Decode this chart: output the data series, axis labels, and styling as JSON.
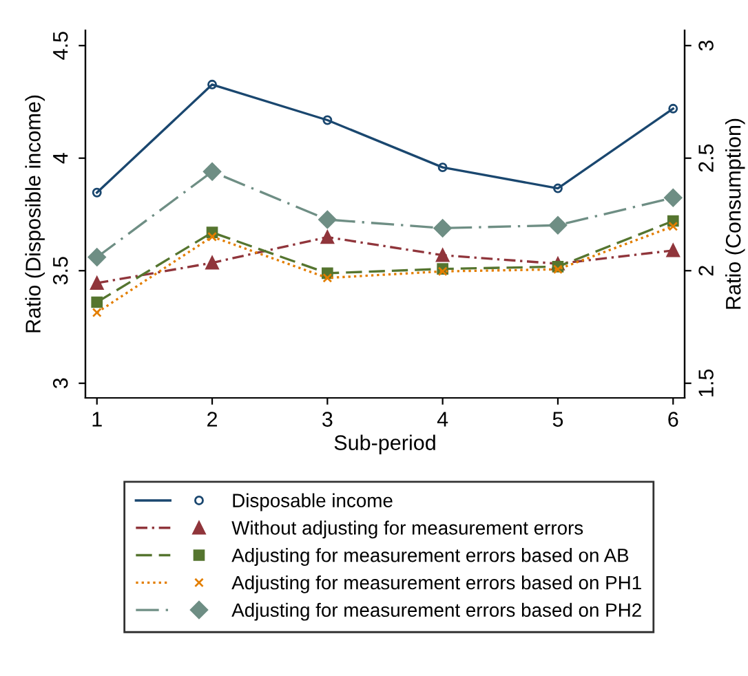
{
  "chart_data": {
    "type": "line",
    "xlabel": "Sub-period",
    "ylabel": "Ratio (Disposible income)",
    "y2label": "Ratio (Consumption)",
    "x": [
      1,
      2,
      3,
      4,
      5,
      6
    ],
    "xlim": [
      0.9,
      6.1
    ],
    "xticks": [
      1,
      2,
      3,
      4,
      5,
      6
    ],
    "ylim": [
      2.935,
      4.568
    ],
    "yticks": [
      3,
      3.5,
      4,
      4.5
    ],
    "y2lim": [
      1.435,
      3.068
    ],
    "y2ticks": [
      1.5,
      2,
      2.5,
      3
    ],
    "grid": false,
    "legend": "bottom",
    "series": [
      {
        "name": "Disposable income",
        "color": "#1a476f",
        "marker": "circle",
        "line_style": "solid",
        "values": [
          3.847,
          4.327,
          4.169,
          3.959,
          3.866,
          4.22
        ]
      },
      {
        "name": "Without adjusting for measurement errors",
        "color": "#90353b",
        "marker": "triangle",
        "line_style": "dashdot",
        "axis": "y2",
        "values": [
          1.945,
          2.035,
          2.149,
          2.069,
          2.031,
          2.09
        ]
      },
      {
        "name": "Adjusting for measurement errors based on AB",
        "color": "#55752f",
        "marker": "square",
        "line_style": "dashed",
        "axis": "y2",
        "values": [
          1.86,
          2.17,
          1.989,
          2.008,
          2.018,
          2.221
        ]
      },
      {
        "name": "Adjusting for measurement errors based on PH1",
        "color": "#e37e00",
        "marker": "cross",
        "line_style": "dotted",
        "axis": "y2",
        "values": [
          1.814,
          2.151,
          1.968,
          1.997,
          2.006,
          2.197
        ]
      },
      {
        "name": "Adjusting for measurement errors based on PH2",
        "color": "#6e8e84",
        "marker": "diamond",
        "line_style": "longdashdot",
        "axis": "y2",
        "values": [
          2.06,
          2.44,
          2.227,
          2.189,
          2.202,
          2.324
        ]
      }
    ]
  }
}
